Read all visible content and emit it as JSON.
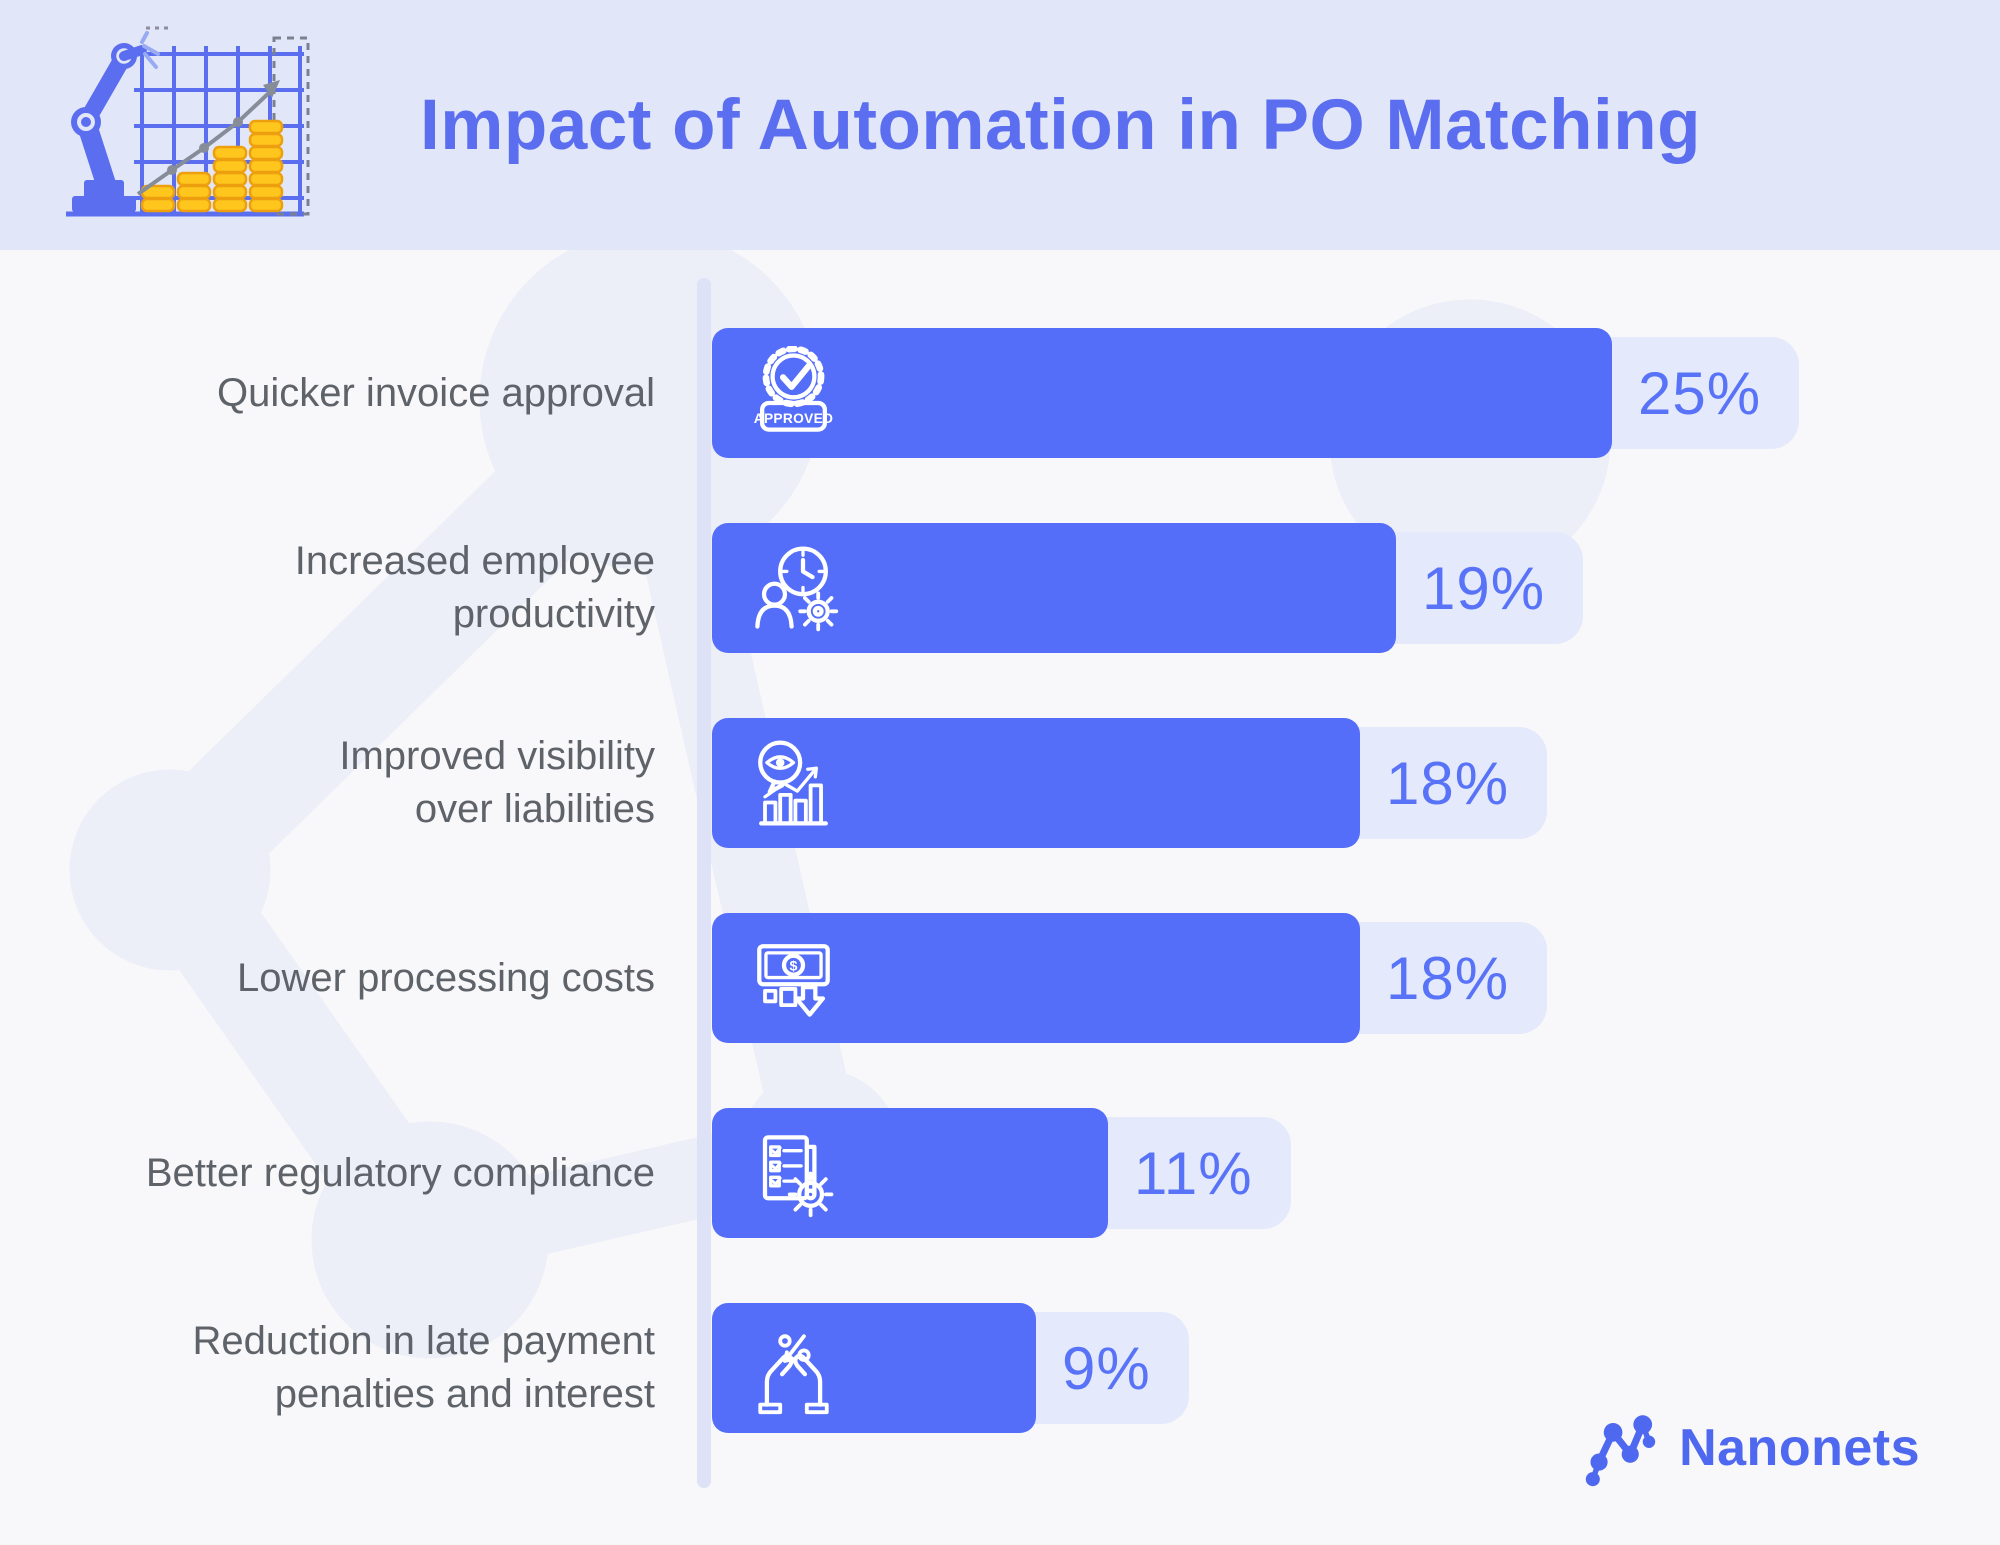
{
  "header": {
    "title": "Impact of Automation in PO Matching"
  },
  "chart_data": {
    "type": "bar",
    "orientation": "horizontal",
    "unit": "%",
    "xlim": [
      0,
      27
    ],
    "grid": false,
    "value_labels": "badge right of bar",
    "categories": [
      "Quicker invoice approval",
      "Increased employee productivity",
      "Improved visibility over liabilities",
      "Lower processing costs",
      "Better regulatory compliance",
      "Reduction in late payment penalties and interest"
    ],
    "values": [
      25,
      19,
      18,
      18,
      11,
      9
    ],
    "bars": [
      {
        "label": "Quicker invoice approval",
        "value": 25,
        "display": "25%",
        "icon": "approved-stamp-icon",
        "icon_text": "APPROVED"
      },
      {
        "label": "Increased employee\nproductivity",
        "value": 19,
        "display": "19%",
        "icon": "employee-productivity-icon"
      },
      {
        "label": "Improved visibility\nover liabilities",
        "value": 18,
        "display": "18%",
        "icon": "visibility-analytics-icon"
      },
      {
        "label": "Lower processing costs",
        "value": 18,
        "display": "18%",
        "icon": "lower-costs-icon"
      },
      {
        "label": "Better regulatory compliance",
        "value": 11,
        "display": "11%",
        "icon": "compliance-checklist-icon"
      },
      {
        "label": "Reduction in late payment\npenalties and interest",
        "value": 9,
        "display": "9%",
        "icon": "hands-percent-icon"
      }
    ]
  },
  "branding": {
    "logo_text": "Nanonets"
  },
  "colors": {
    "page_bg": "#f8f8fa",
    "header_bg": "#e2e6f9",
    "title_color": "#5b6ef0",
    "label_color": "#5e6269",
    "bar_color": "#556efa",
    "badge_bg": "#e4e9fb",
    "badge_text": "#5873f7",
    "axis_color": "#dde2f7",
    "logo_color": "#4e68f0",
    "coin_gold": "#ffc61e",
    "watermark": "#eceef8"
  }
}
